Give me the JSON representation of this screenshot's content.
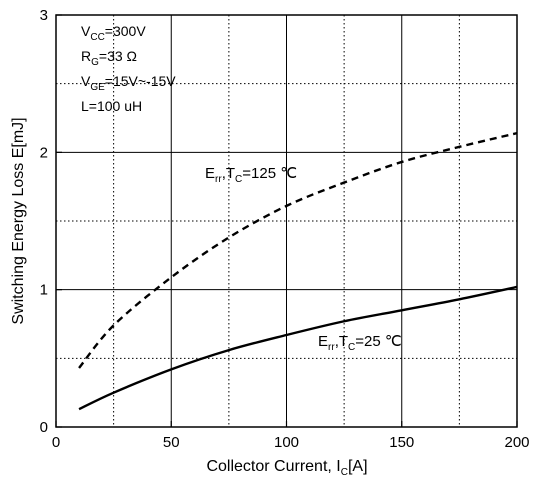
{
  "chart_data": {
    "type": "line",
    "xlabel": {
      "main": "Collector Current, I",
      "sub": "C",
      "tail": "[A]"
    },
    "ylabel": "Switching Energy Loss E[mJ]",
    "xlim": [
      0,
      200
    ],
    "ylim": [
      0,
      3
    ],
    "xticks": [
      0,
      50,
      100,
      150,
      200
    ],
    "yticks": [
      0,
      1,
      2,
      3
    ],
    "grid": true,
    "conditions": [
      {
        "pre": "V",
        "sub": "CC",
        "post": "=300V"
      },
      {
        "pre": "R",
        "sub": "G",
        "post": "=33 Ω"
      },
      {
        "pre": "V",
        "sub": "GE",
        "post": "=15V~-15V"
      },
      {
        "pre": "L=100 uH",
        "sub": "",
        "post": ""
      }
    ],
    "series": [
      {
        "label": {
          "e": "E",
          "esub": "rr",
          "mid": ",T",
          "tsub": "C",
          "tail": "=125 ℃"
        },
        "style": "dashed",
        "color": "#000000",
        "x": [
          10,
          25,
          50,
          75,
          100,
          125,
          150,
          175,
          200
        ],
        "y": [
          0.43,
          0.74,
          1.09,
          1.38,
          1.61,
          1.78,
          1.93,
          2.04,
          2.14
        ]
      },
      {
        "label": {
          "e": "E",
          "esub": "rr",
          "mid": ",T",
          "tsub": "C",
          "tail": "=25 ℃"
        },
        "style": "solid",
        "color": "#000000",
        "x": [
          10,
          25,
          50,
          75,
          100,
          125,
          150,
          175,
          200
        ],
        "y": [
          0.13,
          0.25,
          0.42,
          0.56,
          0.67,
          0.77,
          0.85,
          0.93,
          1.02
        ]
      }
    ]
  }
}
